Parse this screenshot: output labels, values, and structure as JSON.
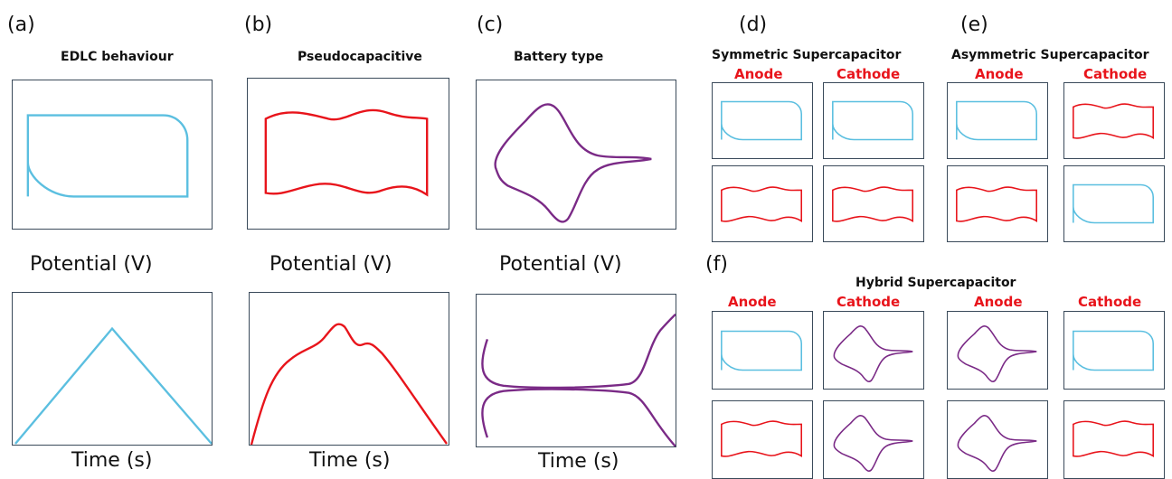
{
  "colors": {
    "edlc": "#5bbfe0",
    "pseudo": "#e8141b",
    "battery": "#7a2a86",
    "role_label": "#e8141b",
    "frame": "#3a4a5a"
  },
  "panels": {
    "a": {
      "letter": "(a)",
      "title": "EDLC  behaviour",
      "cv_xlabel": "Potential  (V)",
      "gcd_xlabel": "Time (s)"
    },
    "b": {
      "letter": "(b)",
      "title": "Pseudocapacitive",
      "cv_xlabel": "Potential  (V)",
      "gcd_xlabel": "Time (s)"
    },
    "c": {
      "letter": "(c)",
      "title": "Battery type",
      "cv_xlabel": "Potential  (V)",
      "gcd_xlabel": "Time (s)"
    },
    "d": {
      "letter": "(d)",
      "title": "Symmetric Supercapacitor",
      "anode": "Anode",
      "cathode": "Cathode"
    },
    "e": {
      "letter": "(e)",
      "title": "Asymmetric Supercapacitor",
      "anode": "Anode",
      "cathode": "Cathode"
    },
    "f": {
      "letter": "(f)",
      "title": "Hybrid Supercapacitor",
      "anode_1": "Anode",
      "cathode_1": "Cathode",
      "anode_2": "Anode",
      "cathode_2": "Cathode"
    }
  }
}
